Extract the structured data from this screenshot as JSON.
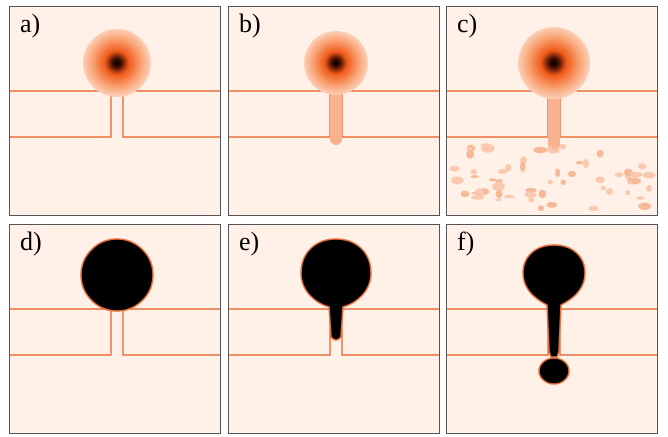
{
  "figure": {
    "panels": [
      {
        "id": "a",
        "label": "a)",
        "state": "smooth-source-no-leak"
      },
      {
        "id": "b",
        "label": "b)",
        "state": "smooth-source-channel-leak"
      },
      {
        "id": "c",
        "label": "c)",
        "state": "smooth-source-scattered-noise"
      },
      {
        "id": "d",
        "label": "d)",
        "state": "solid-drop-no-leak"
      },
      {
        "id": "e",
        "label": "e)",
        "state": "solid-drop-in-channel"
      },
      {
        "id": "f",
        "label": "f)",
        "state": "solid-drop-pinched-through"
      }
    ]
  },
  "colors": {
    "background": "#fff0e8",
    "channel_line": "#e8703a",
    "blob_core": "#000000",
    "blob_mid": "#f06020",
    "blob_outer": "#fbb090",
    "panel_border": "#555555"
  }
}
